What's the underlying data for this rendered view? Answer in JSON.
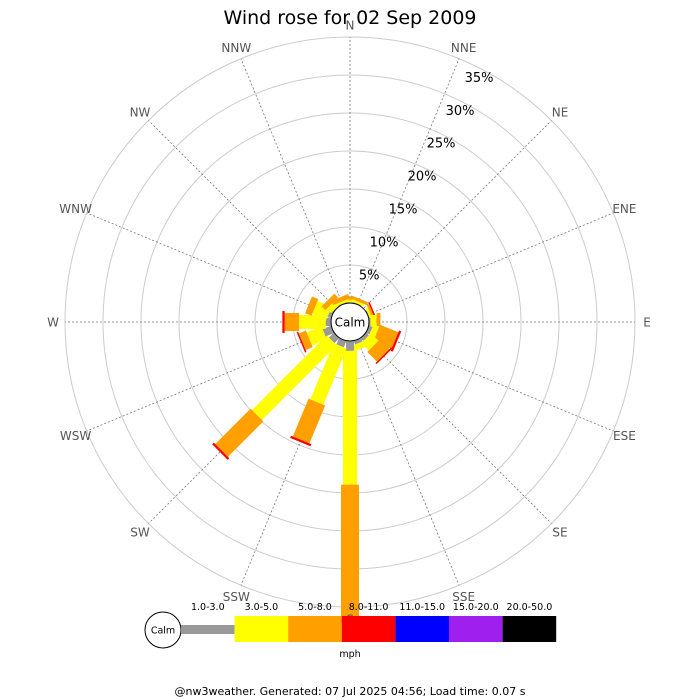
{
  "chart_data": {
    "type": "wind-rose",
    "title": "Wind rose for 02 Sep 2009",
    "directions": [
      "N",
      "NNE",
      "NE",
      "ENE",
      "E",
      "ESE",
      "SE",
      "SSE",
      "S",
      "SSW",
      "SW",
      "WSW",
      "W",
      "WNW",
      "NW",
      "NNW"
    ],
    "rings_percent": [
      5,
      10,
      15,
      20,
      25,
      30,
      35
    ],
    "ring_labels": [
      "5%",
      "10%",
      "15%",
      "20%",
      "25%",
      "30%",
      "35%"
    ],
    "calm_label": "Calm",
    "unit_label": "mph",
    "speed_bins": [
      {
        "name": "1.0-3.0",
        "color": "#999999"
      },
      {
        "name": "3.0-5.0",
        "color": "#ffff00"
      },
      {
        "name": "5.0-8.0",
        "color": "#ff9f00"
      },
      {
        "name": "8.0-11.0",
        "color": "#ff0000"
      },
      {
        "name": "11.0-15.0",
        "color": "#0000ff"
      },
      {
        "name": "15.0-20.0",
        "color": "#9f1fef"
      },
      {
        "name": "20.0-50.0",
        "color": "#000000"
      }
    ],
    "series": [
      {
        "direction": "N",
        "values": [
          0.1,
          0.3,
          0.2,
          0,
          0,
          0,
          0
        ]
      },
      {
        "direction": "NNE",
        "values": [
          0.1,
          0.3,
          0.4,
          0,
          0,
          0,
          0
        ]
      },
      {
        "direction": "NE",
        "values": [
          0,
          0,
          0,
          0,
          0,
          0,
          0
        ]
      },
      {
        "direction": "ENE",
        "values": [
          0.1,
          0.3,
          0.3,
          0.2,
          0,
          0,
          0
        ]
      },
      {
        "direction": "E",
        "values": [
          0.2,
          0.8,
          0.5,
          0,
          0,
          0,
          0
        ]
      },
      {
        "direction": "ESE",
        "values": [
          0.5,
          0.8,
          2.6,
          0.3,
          0,
          0,
          0
        ]
      },
      {
        "direction": "SE",
        "values": [
          0.5,
          1.4,
          1.8,
          0.2,
          0,
          0,
          0
        ]
      },
      {
        "direction": "SSE",
        "values": [
          0.5,
          0.8,
          0,
          0,
          0,
          0,
          0
        ]
      },
      {
        "direction": "S",
        "values": [
          1.3,
          17.6,
          17.8,
          0.3,
          0,
          0,
          0
        ]
      },
      {
        "direction": "SSW",
        "values": [
          0.9,
          8.0,
          5.4,
          0.3,
          0,
          0,
          0
        ]
      },
      {
        "direction": "SW",
        "values": [
          0.9,
          13.9,
          6.6,
          0.3,
          0,
          0,
          0
        ]
      },
      {
        "direction": "WSW",
        "values": [
          1.2,
          2.1,
          1.0,
          0.2,
          0,
          0,
          0
        ]
      },
      {
        "direction": "W",
        "values": [
          0.7,
          3.5,
          1.9,
          0.3,
          0,
          0,
          0
        ]
      },
      {
        "direction": "WNW",
        "values": [
          0.5,
          2.0,
          0.9,
          0,
          0,
          0,
          0
        ]
      },
      {
        "direction": "NW",
        "values": [
          0.1,
          0.8,
          0.7,
          0,
          0,
          0,
          0
        ]
      },
      {
        "direction": "NNW",
        "values": [
          0.1,
          0.3,
          0.6,
          0,
          0,
          0,
          0
        ]
      }
    ],
    "grid": true,
    "legend_position": "bottom"
  },
  "footer_text": "@nw3weather. Generated: 07 Jul 2025 04:56; Load time: 0.07 s"
}
